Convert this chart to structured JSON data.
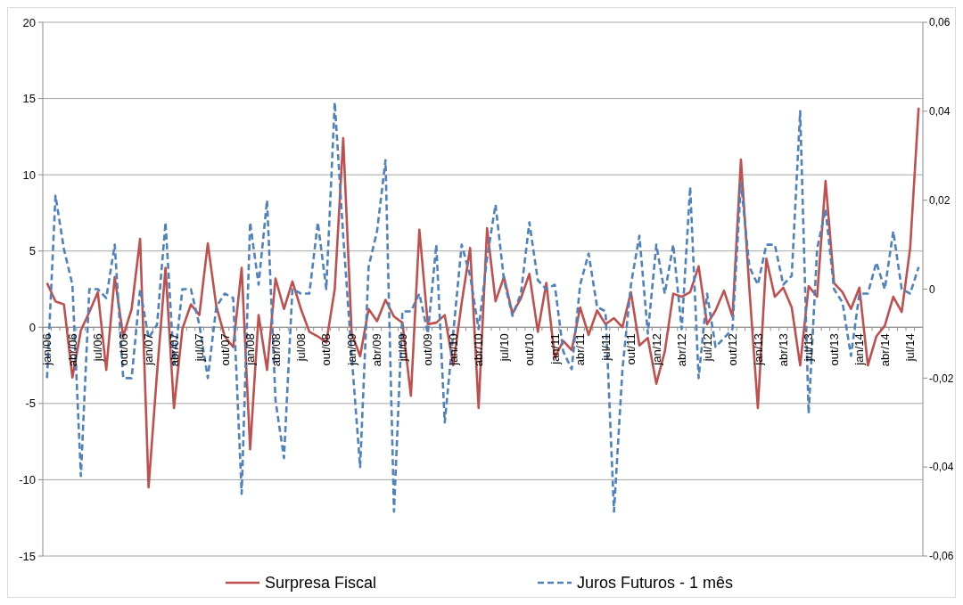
{
  "chart_data": {
    "type": "line",
    "categories": [
      "jan/06",
      null,
      null,
      "abr/06",
      null,
      null,
      "jul/06",
      null,
      null,
      "out/06",
      null,
      null,
      "jan/07",
      null,
      null,
      "abr/07",
      null,
      null,
      "jul/07",
      null,
      null,
      "out/07",
      null,
      null,
      "jan/08",
      null,
      null,
      "abr/08",
      null,
      null,
      "jul/08",
      null,
      null,
      "out/08",
      null,
      null,
      "jan/09",
      null,
      null,
      "abr/09",
      null,
      null,
      "jul/09",
      null,
      null,
      "out/09",
      null,
      null,
      "jan/10",
      null,
      null,
      "abr/10",
      null,
      null,
      "jul/10",
      null,
      null,
      "out/10",
      null,
      null,
      "jan/11",
      null,
      null,
      "abr/11",
      null,
      null,
      "jul/11",
      null,
      null,
      "out/11",
      null,
      null,
      "jan/12",
      null,
      null,
      "abr/12",
      null,
      null,
      "jul/12",
      null,
      null,
      "out/12",
      null,
      null,
      "jan/13",
      null,
      null,
      "abr/13",
      null,
      null,
      "jul/13",
      null,
      null,
      "out/13",
      null,
      null,
      "jan/14",
      null,
      null,
      "abr/14",
      null,
      null,
      "jul/14",
      null
    ],
    "series": [
      {
        "name": "Surpresa Fiscal",
        "color": "#c0504d",
        "line_style": "solid",
        "values": [
          2.9,
          1.7,
          1.5,
          -3.3,
          -0.2,
          1.0,
          2.3,
          -2.8,
          3.3,
          -0.6,
          1.2,
          5.8,
          -10.5,
          -3.0,
          3.9,
          -5.3,
          -0.1,
          1.5,
          0.8,
          5.5,
          1.4,
          -0.6,
          -1.3,
          3.9,
          -8.0,
          0.8,
          -2.8,
          3.2,
          1.2,
          3.0,
          1.2,
          -0.3,
          -0.6,
          -1.0,
          2.5,
          12.4,
          -0.4,
          -1.9,
          1.2,
          0.4,
          1.8,
          0.7,
          0.3,
          -4.5,
          6.4,
          0.2,
          0.3,
          0.8,
          -2.5,
          1.6,
          5.2,
          -5.3,
          6.5,
          1.7,
          3.3,
          0.9,
          1.9,
          3.5,
          -0.3,
          2.9,
          -2.0,
          -0.9,
          -1.5,
          1.3,
          -0.5,
          1.1,
          0.2,
          0.6,
          0.0,
          2.3,
          -1.2,
          -0.7,
          -3.7,
          -1.6,
          2.2,
          2.0,
          2.3,
          4.0,
          0.2,
          1.1,
          2.4,
          0.7,
          11.0,
          2.5,
          -5.3,
          4.5,
          2.0,
          2.6,
          1.3,
          -2.5,
          2.7,
          2.0,
          9.6,
          2.9,
          2.3,
          1.2,
          2.6,
          -2.5,
          -0.6,
          0.1,
          2.0,
          1.0,
          5.2,
          14.4
        ]
      },
      {
        "name": "Juros Futuros - 1 mês",
        "color": "#4f81bd",
        "line_style": "dashed",
        "axis": "y2",
        "values": [
          -0.02,
          0.021,
          0.009,
          0.001,
          -0.042,
          0.0,
          0.0,
          -0.002,
          0.01,
          -0.02,
          -0.02,
          0.0,
          -0.011,
          -0.008,
          0.015,
          -0.017,
          0.0,
          0.0,
          -0.008,
          -0.02,
          -0.004,
          -0.001,
          -0.002,
          -0.046,
          0.015,
          0.001,
          0.02,
          -0.025,
          -0.038,
          0.0,
          -0.001,
          -0.001,
          0.015,
          0.0,
          0.042,
          0.012,
          -0.015,
          -0.04,
          0.005,
          0.013,
          0.029,
          -0.05,
          -0.005,
          -0.005,
          -0.001,
          -0.01,
          0.01,
          -0.03,
          -0.01,
          0.01,
          0.003,
          -0.009,
          0.007,
          0.019,
          0.002,
          -0.006,
          -0.001,
          0.015,
          0.002,
          0.0,
          0.001,
          -0.014,
          -0.018,
          0.001,
          0.008,
          -0.004,
          -0.005,
          -0.05,
          -0.018,
          0.001,
          0.012,
          -0.01,
          0.01,
          -0.001,
          0.01,
          -0.009,
          0.023,
          -0.02,
          -0.001,
          -0.013,
          -0.011,
          -0.009,
          0.024,
          0.005,
          0.001,
          0.01,
          0.01,
          0.001,
          0.003,
          0.04,
          -0.028,
          0.009,
          0.018,
          0.0,
          -0.003,
          -0.015,
          -0.001,
          -0.001,
          0.006,
          0.0,
          0.013,
          0.0,
          -0.001,
          0.005
        ]
      }
    ],
    "ylim": [
      -15,
      20
    ],
    "yticks": [
      -15,
      -10,
      -5,
      0,
      5,
      10,
      15,
      20
    ],
    "y2lim": [
      -0.06,
      0.06
    ],
    "y2ticks": [
      {
        "value": -0.06,
        "label": "-0,06"
      },
      {
        "value": -0.04,
        "label": "-0,04"
      },
      {
        "value": -0.02,
        "label": "-0,02"
      },
      0,
      {
        "value": 0.02,
        "label": "0,02"
      },
      {
        "value": 0.04,
        "label": "0,04"
      },
      {
        "value": 0.06,
        "label": "0,06"
      }
    ],
    "grid": "y",
    "legend": "bottom",
    "marker": "none"
  }
}
